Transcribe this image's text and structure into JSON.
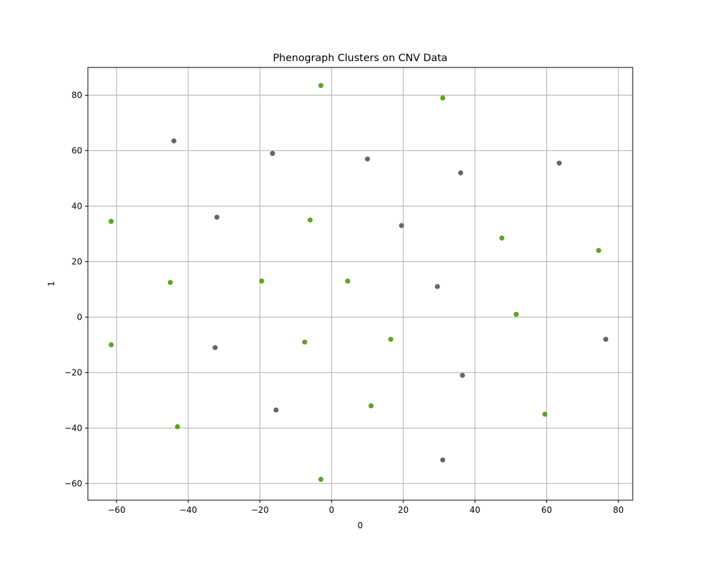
{
  "chart_data": {
    "type": "scatter",
    "title": "Phenograph Clusters on CNV Data",
    "xlabel": "0",
    "ylabel": "1",
    "xlim": [
      -68,
      84
    ],
    "ylim": [
      -66,
      90
    ],
    "xticks": [
      -60,
      -40,
      -20,
      0,
      20,
      40,
      60,
      80
    ],
    "yticks": [
      -60,
      -40,
      -20,
      0,
      20,
      40,
      60,
      80
    ],
    "grid": true,
    "legend": "none",
    "series": [
      {
        "color": "#5ea323",
        "points": [
          [
            -3,
            83.5
          ],
          [
            31,
            79
          ],
          [
            -6,
            35
          ],
          [
            -61.5,
            34.5
          ],
          [
            47.5,
            28.5
          ],
          [
            74.5,
            24
          ],
          [
            -45,
            12.5
          ],
          [
            -19.5,
            13
          ],
          [
            4.5,
            13
          ],
          [
            51.5,
            1
          ],
          [
            -61.5,
            -10
          ],
          [
            -7.5,
            -9
          ],
          [
            16.5,
            -8
          ],
          [
            11,
            -32
          ],
          [
            59.5,
            -35
          ],
          [
            -43,
            -39.5
          ],
          [
            -3,
            -58.5
          ]
        ]
      },
      {
        "color": "#666666",
        "points": [
          [
            -44,
            63.5
          ],
          [
            -16.5,
            59
          ],
          [
            10,
            57
          ],
          [
            36,
            52
          ],
          [
            63.5,
            55.5
          ],
          [
            -32,
            36
          ],
          [
            19.5,
            33
          ],
          [
            29.5,
            11
          ],
          [
            76.5,
            -8
          ],
          [
            -32.5,
            -11
          ],
          [
            36.5,
            -21
          ],
          [
            -15.5,
            -33.5
          ],
          [
            31,
            -51.5
          ]
        ]
      }
    ]
  }
}
